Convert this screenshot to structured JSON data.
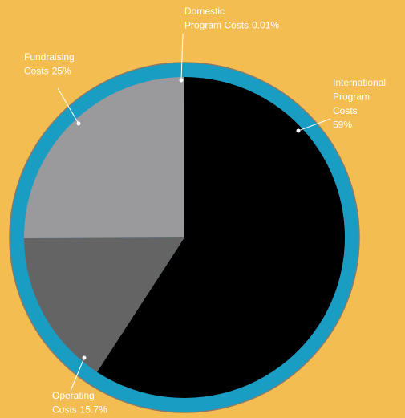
{
  "chart_data": {
    "type": "pie",
    "categories": [
      "International Program Costs",
      "Operating Costs",
      "Fundraising Costs",
      "Domestic Program Costs"
    ],
    "values": [
      59,
      15.7,
      25,
      0.01
    ],
    "value_labels": [
      "59%",
      "15.7%",
      "25%",
      "0.01%"
    ],
    "colors": [
      "#000000",
      "#646464",
      "#9a9a9c",
      "#e6eef2"
    ]
  }
}
